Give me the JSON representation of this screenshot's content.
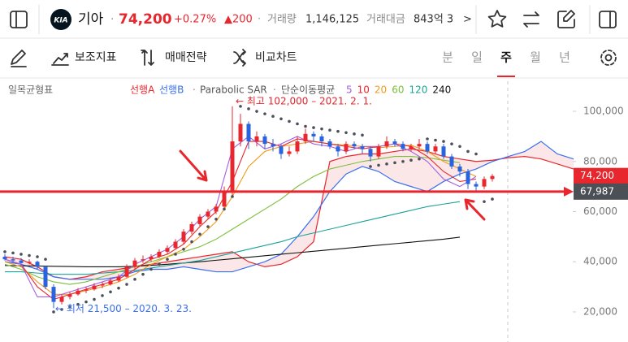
{
  "header": {
    "logo": "KIA",
    "name": "기아",
    "separator": "·",
    "price": "74,200",
    "change_rate": "+0.27%",
    "change": "▲200",
    "volume_label": "거래량",
    "volume": "1,146,125",
    "amount_label": "거래대금",
    "amount": "843억 3",
    "more": ">"
  },
  "toolbar": {
    "items": [
      "보조지표",
      "매매전략",
      "비교차트"
    ],
    "tabs": [
      "분",
      "일",
      "주",
      "월",
      "년"
    ],
    "selected_tab": "주"
  },
  "chart_data": {
    "type": "candlestick",
    "indicator": "일목균형표",
    "legend": {
      "separator": "·",
      "sar": "Parabolic SAR",
      "ma": "단순이동평균"
    },
    "up_color": "#e8262d",
    "down_color": "#2a63de",
    "ylim": [
      8000,
      112000
    ],
    "yticks": [
      {
        "value": 20000,
        "label": "20,000"
      },
      {
        "value": 40000,
        "label": "40,000"
      },
      {
        "value": 60000,
        "label": "60,000"
      },
      {
        "value": 80000,
        "label": "80,000"
      },
      {
        "value": 100000,
        "label": "100,000"
      }
    ],
    "price_labels": [
      {
        "value": 74200,
        "label": "74,200",
        "color": "#e8262d"
      },
      {
        "value": 67987,
        "label": "67,987",
        "color": "#4b4f56"
      }
    ],
    "annotations": [
      "← 최고 102,000 – 2021. 2. 1.",
      "← 최저 21,500 – 2020. 3. 23."
    ],
    "candles": [
      {
        "open": 42000,
        "high": 43000,
        "low": 40500,
        "close": 41000
      },
      {
        "open": 41000,
        "high": 42000,
        "low": 39500,
        "close": 40500
      },
      {
        "open": 40500,
        "high": 41500,
        "low": 39000,
        "close": 39500
      },
      {
        "open": 39500,
        "high": 41000,
        "low": 39000,
        "close": 40000
      },
      {
        "open": 40000,
        "high": 40500,
        "low": 37000,
        "close": 38000
      },
      {
        "open": 38000,
        "high": 38500,
        "low": 29000,
        "close": 30000
      },
      {
        "open": 30000,
        "high": 31000,
        "low": 21500,
        "close": 24000
      },
      {
        "open": 24000,
        "high": 27000,
        "low": 23000,
        "close": 26000
      },
      {
        "open": 26000,
        "high": 28000,
        "low": 25000,
        "close": 27000
      },
      {
        "open": 27000,
        "high": 29500,
        "low": 26500,
        "close": 28500
      },
      {
        "open": 28500,
        "high": 30000,
        "low": 27500,
        "close": 29000
      },
      {
        "open": 29000,
        "high": 31500,
        "low": 28500,
        "close": 30500
      },
      {
        "open": 30500,
        "high": 32000,
        "low": 29500,
        "close": 31000
      },
      {
        "open": 31000,
        "high": 33500,
        "low": 30500,
        "close": 32500
      },
      {
        "open": 32500,
        "high": 35000,
        "low": 32000,
        "close": 34000
      },
      {
        "open": 34000,
        "high": 39000,
        "low": 33500,
        "close": 38000
      },
      {
        "open": 38000,
        "high": 41500,
        "low": 37000,
        "close": 40500
      },
      {
        "open": 40500,
        "high": 42500,
        "low": 39500,
        "close": 41000
      },
      {
        "open": 41000,
        "high": 43000,
        "low": 40000,
        "close": 42000
      },
      {
        "open": 42000,
        "high": 45000,
        "low": 41500,
        "close": 44000
      },
      {
        "open": 44000,
        "high": 46500,
        "low": 43000,
        "close": 45500
      },
      {
        "open": 45500,
        "high": 49000,
        "low": 45000,
        "close": 48000
      },
      {
        "open": 48000,
        "high": 53000,
        "low": 47000,
        "close": 52000
      },
      {
        "open": 52000,
        "high": 56000,
        "low": 51000,
        "close": 55000
      },
      {
        "open": 55000,
        "high": 59000,
        "low": 54000,
        "close": 58000
      },
      {
        "open": 58000,
        "high": 61000,
        "low": 57000,
        "close": 60000
      },
      {
        "open": 60000,
        "high": 63000,
        "low": 59000,
        "close": 62000
      },
      {
        "open": 62000,
        "high": 70000,
        "low": 61000,
        "close": 68000
      },
      {
        "open": 68000,
        "high": 102000,
        "low": 66000,
        "close": 88000
      },
      {
        "open": 88000,
        "high": 99000,
        "low": 86000,
        "close": 95000
      },
      {
        "open": 95000,
        "high": 96000,
        "low": 85000,
        "close": 88000
      },
      {
        "open": 88000,
        "high": 92000,
        "low": 86000,
        "close": 90000
      },
      {
        "open": 90000,
        "high": 91000,
        "low": 85000,
        "close": 87000
      },
      {
        "open": 87000,
        "high": 89000,
        "low": 84000,
        "close": 86000
      },
      {
        "open": 86000,
        "high": 87000,
        "low": 81000,
        "close": 83000
      },
      {
        "open": 83000,
        "high": 86000,
        "low": 82000,
        "close": 84000
      },
      {
        "open": 84000,
        "high": 90000,
        "low": 83000,
        "close": 88000
      },
      {
        "open": 88000,
        "high": 93000,
        "low": 87000,
        "close": 91000
      },
      {
        "open": 91000,
        "high": 92000,
        "low": 88000,
        "close": 90000
      },
      {
        "open": 90000,
        "high": 91000,
        "low": 86000,
        "close": 88000
      },
      {
        "open": 88000,
        "high": 89000,
        "low": 85000,
        "close": 86000
      },
      {
        "open": 86000,
        "high": 87000,
        "low": 82000,
        "close": 84000
      },
      {
        "open": 84000,
        "high": 88000,
        "low": 83000,
        "close": 87000
      },
      {
        "open": 87000,
        "high": 88000,
        "low": 85000,
        "close": 86000
      },
      {
        "open": 86000,
        "high": 87000,
        "low": 83000,
        "close": 85000
      },
      {
        "open": 85000,
        "high": 86000,
        "low": 80000,
        "close": 82000
      },
      {
        "open": 82000,
        "high": 87000,
        "low": 81000,
        "close": 86000
      },
      {
        "open": 86000,
        "high": 90000,
        "low": 85000,
        "close": 88000
      },
      {
        "open": 88000,
        "high": 89000,
        "low": 86000,
        "close": 87000
      },
      {
        "open": 87000,
        "high": 88000,
        "low": 84000,
        "close": 85000
      },
      {
        "open": 85000,
        "high": 87000,
        "low": 84000,
        "close": 86000
      },
      {
        "open": 86000,
        "high": 89000,
        "low": 85000,
        "close": 87000
      },
      {
        "open": 87000,
        "high": 88000,
        "low": 83000,
        "close": 84000
      },
      {
        "open": 84000,
        "high": 87000,
        "low": 83000,
        "close": 86000
      },
      {
        "open": 86000,
        "high": 87000,
        "low": 81000,
        "close": 82000
      },
      {
        "open": 82000,
        "high": 83000,
        "low": 77000,
        "close": 78000
      },
      {
        "open": 78000,
        "high": 79000,
        "low": 74000,
        "close": 76000
      },
      {
        "open": 76000,
        "high": 77000,
        "low": 69000,
        "close": 71000
      },
      {
        "open": 71000,
        "high": 72000,
        "low": 68000,
        "close": 70000
      },
      {
        "open": 70000,
        "high": 74000,
        "low": 69000,
        "close": 73000
      },
      {
        "open": 73000,
        "high": 75000,
        "low": 72000,
        "close": 74200
      }
    ],
    "sar": {
      "name": "Parabolic SAR",
      "color": "#4a4f5a",
      "values": [
        44000,
        43500,
        43000,
        42500,
        42000,
        41000,
        20000,
        21000,
        22000,
        23000,
        24000,
        25000,
        26500,
        28000,
        29500,
        31000,
        33000,
        35000,
        37000,
        39000,
        41000,
        43000,
        45000,
        48000,
        51000,
        54000,
        57000,
        61000,
        66000,
        102000,
        101000,
        100000,
        99000,
        98000,
        97000,
        96000,
        95000,
        94000,
        93500,
        93000,
        92500,
        92000,
        91500,
        91000,
        90500,
        78000,
        78500,
        79000,
        79500,
        80000,
        80500,
        81000,
        89000,
        88500,
        88000,
        87000,
        86000,
        84000,
        83000,
        64000,
        65000
      ]
    },
    "cloud": [
      {
        "name": "선행A",
        "color": "#e8262d",
        "values": [
          42000,
          41000,
          38000,
          34000,
          33000,
          34000,
          36000,
          37000,
          38000,
          39000,
          40000,
          41000,
          42000,
          43000,
          44000,
          40000,
          38000,
          39000,
          42000,
          48000,
          80000,
          82000,
          83000,
          83000,
          84000,
          85000,
          84000,
          82000,
          81000,
          80000,
          80500,
          81500,
          82000,
          81000,
          79000,
          77000
        ]
      },
      {
        "name": "선행B",
        "color": "#3a6ff0",
        "values": [
          40000,
          39000,
          37000,
          34000,
          33000,
          33000,
          33000,
          34000,
          36000,
          37000,
          37000,
          38000,
          37000,
          36000,
          36000,
          38000,
          40000,
          43000,
          50000,
          58000,
          68000,
          75000,
          78000,
          76000,
          72000,
          70000,
          68000,
          72000,
          75000,
          77000,
          80000,
          82000,
          84000,
          88000,
          83000,
          81000
        ]
      }
    ],
    "series": [
      {
        "name": "5",
        "color": "#a45fe0",
        "values": [
          41000,
          39000,
          26000,
          26000,
          28000,
          30000,
          32000,
          34000,
          39000,
          42000,
          45000,
          50000,
          57000,
          62000,
          85000,
          90000,
          85000,
          87000,
          90000,
          87000,
          86000,
          84000,
          86000,
          86000,
          87000,
          84000,
          80000,
          73000,
          70000,
          74000,
          null,
          null,
          null,
          null,
          null,
          null
        ]
      },
      {
        "name": "10",
        "color": "#e8262d",
        "values": [
          41000,
          39000,
          30000,
          25000,
          27000,
          29000,
          31000,
          33000,
          37000,
          41000,
          43000,
          47000,
          54000,
          60000,
          72000,
          88000,
          88000,
          86000,
          89000,
          88000,
          87000,
          86000,
          85000,
          86000,
          87000,
          86000,
          82000,
          76000,
          72000,
          73000,
          null,
          null,
          null,
          null,
          null,
          null
        ]
      },
      {
        "name": "20",
        "color": "#f29a1c",
        "values": [
          40000,
          38000,
          32000,
          27000,
          27000,
          28500,
          30000,
          32000,
          35000,
          39000,
          42000,
          45000,
          50000,
          56000,
          66000,
          78000,
          84000,
          86000,
          87000,
          88000,
          87000,
          86500,
          86000,
          85500,
          86000,
          86500,
          84000,
          80000,
          77000,
          74000,
          null,
          null,
          null,
          null,
          null,
          null
        ]
      },
      {
        "name": "60",
        "color": "#7cbf3a",
        "values": [
          39000,
          37000,
          34000,
          32000,
          31000,
          32000,
          34000,
          36000,
          38000,
          40000,
          42000,
          44000,
          46000,
          49000,
          53000,
          57000,
          61000,
          65000,
          70000,
          74000,
          77000,
          78500,
          80000,
          81000,
          82000,
          82000,
          81500,
          80500,
          79500,
          null,
          null,
          null,
          null,
          null,
          null,
          null
        ]
      },
      {
        "name": "120",
        "color": "#1aa39a",
        "values": [
          36000,
          36000,
          35500,
          35000,
          35000,
          35000,
          35500,
          36000,
          36500,
          37500,
          38500,
          39500,
          40500,
          42000,
          43500,
          45000,
          46500,
          48000,
          50000,
          51500,
          53000,
          54500,
          56000,
          57500,
          59000,
          60500,
          62000,
          63000,
          64000,
          null,
          null,
          null,
          null,
          null,
          null,
          null
        ]
      },
      {
        "name": "240",
        "color": "#111111",
        "values": [
          38500,
          38400,
          38300,
          38200,
          38100,
          38000,
          38000,
          38000,
          38200,
          38600,
          39000,
          39500,
          40000,
          40600,
          41200,
          41800,
          42400,
          43000,
          43600,
          44200,
          44800,
          45400,
          46000,
          46600,
          47200,
          47800,
          48400,
          49000,
          49800,
          null,
          null,
          null,
          null,
          null,
          null,
          null
        ]
      }
    ]
  }
}
